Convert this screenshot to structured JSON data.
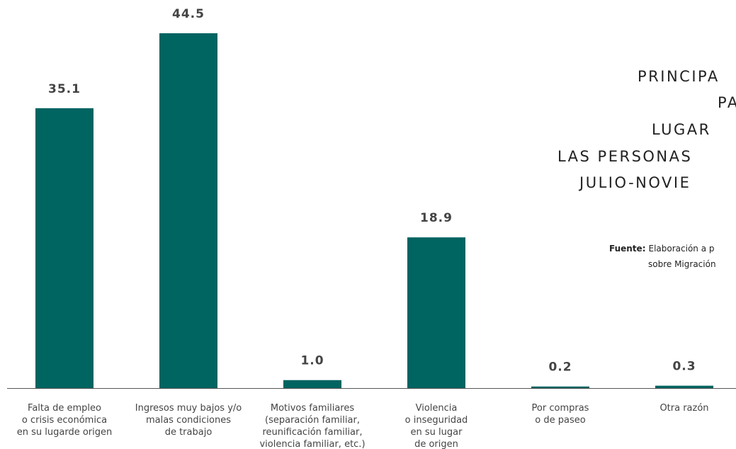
{
  "chart_data": {
    "type": "bar",
    "title_lines": [
      "PRINCIPA",
      "PA",
      "LUGAR",
      "LAS PERSONAS",
      "JULIO-NOVIE"
    ],
    "source_label": "Fuente:",
    "source_lines": [
      "Elaboración a p",
      "sobre Migración"
    ],
    "categories": [
      [
        "Falta de empleo",
        "o crisis económica",
        "en su lugarde origen"
      ],
      [
        "Ingresos muy bajos y/o",
        "malas condiciones",
        "de trabajo"
      ],
      [
        "Motivos familiares",
        "(separación familiar,",
        "reunificación familiar,",
        "violencia familiar, etc.)"
      ],
      [
        "Violencia",
        "o inseguridad",
        "en su lugar",
        "de origen"
      ],
      [
        "Por compras",
        "o de paseo"
      ],
      [
        "Otra razón"
      ]
    ],
    "values": [
      35.1,
      44.5,
      1.0,
      18.9,
      0.2,
      0.3
    ],
    "value_labels": [
      "35.1",
      "44.5",
      "1.0",
      "18.9",
      "0.2",
      "0.3"
    ],
    "color": "#006461"
  }
}
